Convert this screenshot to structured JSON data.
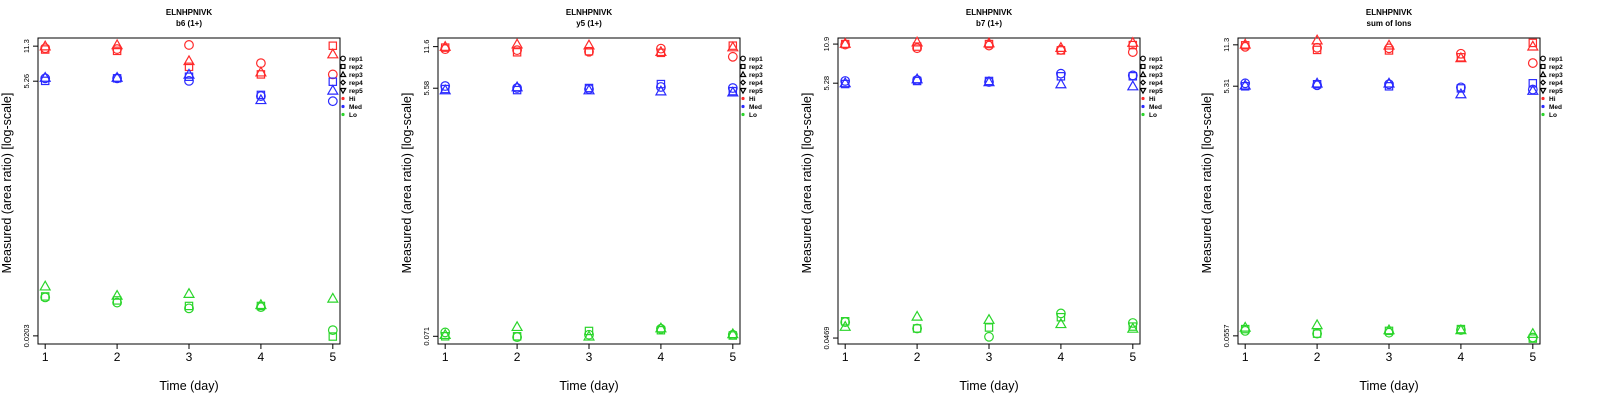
{
  "colors": {
    "Hi": "#ff2a2a",
    "Med": "#2a2aff",
    "Lo": "#2ad52a",
    "axis": "#000000"
  },
  "legend": [
    {
      "label": "rep1",
      "marker": "circle"
    },
    {
      "label": "rep2",
      "marker": "square"
    },
    {
      "label": "rep3",
      "marker": "triangle-up"
    },
    {
      "label": "rep4",
      "marker": "diamond"
    },
    {
      "label": "rep5",
      "marker": "triangle-down"
    },
    {
      "label": "Hi",
      "marker": "dot",
      "color": "Hi"
    },
    {
      "label": "Med",
      "marker": "dot",
      "color": "Med"
    },
    {
      "label": "Lo",
      "marker": "dot",
      "color": "Lo"
    }
  ],
  "chart_data": [
    {
      "type": "scatter",
      "title": "ELNHPNIVK",
      "subtitle": "b6 (1+)",
      "xlabel": "Time (day)",
      "ylabel": "Measured (area ratio) [log-scale]",
      "x_ticks": [
        "1",
        "2",
        "3",
        "4",
        "5"
      ],
      "y_ticks": [
        "0.0203",
        "5.26",
        "11.3"
      ],
      "xlim": [
        0.9,
        5.1
      ],
      "ylim": [
        0.017,
        13.5
      ],
      "log_y": true,
      "series": [
        {
          "group": "Hi",
          "marker": "circle",
          "points": [
            [
              1,
              10.8
            ],
            [
              2,
              10.6
            ],
            [
              3,
              11.6
            ],
            [
              4,
              7.8
            ],
            [
              5,
              6.1
            ]
          ]
        },
        {
          "group": "Hi",
          "marker": "square",
          "points": [
            [
              1,
              10.5
            ],
            [
              2,
              10.2
            ],
            [
              3,
              7.2
            ],
            [
              4,
              6.1
            ],
            [
              5,
              11.4
            ]
          ]
        },
        {
          "group": "Hi",
          "marker": "triangle-up",
          "points": [
            [
              1,
              11.3
            ],
            [
              2,
              11.6
            ],
            [
              3,
              8.2
            ],
            [
              4,
              6.4
            ],
            [
              5,
              9.5
            ]
          ]
        },
        {
          "group": "Med",
          "marker": "circle",
          "points": [
            [
              1,
              5.6
            ],
            [
              2,
              5.6
            ],
            [
              3,
              5.3
            ],
            [
              4,
              3.8
            ],
            [
              5,
              3.4
            ]
          ]
        },
        {
          "group": "Med",
          "marker": "square",
          "points": [
            [
              1,
              5.3
            ],
            [
              2,
              5.6
            ],
            [
              3,
              5.8
            ],
            [
              4,
              3.9
            ],
            [
              5,
              5.2
            ]
          ]
        },
        {
          "group": "Med",
          "marker": "triangle-up",
          "points": [
            [
              1,
              5.7
            ],
            [
              2,
              5.7
            ],
            [
              3,
              6.1
            ],
            [
              4,
              3.5
            ],
            [
              5,
              4.3
            ]
          ]
        },
        {
          "group": "Lo",
          "marker": "circle",
          "points": [
            [
              1,
              0.047
            ],
            [
              2,
              0.042
            ],
            [
              3,
              0.037
            ],
            [
              4,
              0.038
            ],
            [
              5,
              0.023
            ]
          ]
        },
        {
          "group": "Lo",
          "marker": "square",
          "points": [
            [
              1,
              0.048
            ],
            [
              2,
              0.044
            ],
            [
              3,
              0.039
            ],
            [
              4,
              0.039
            ],
            [
              5,
              0.02
            ]
          ]
        },
        {
          "group": "Lo",
          "marker": "triangle-up",
          "points": [
            [
              1,
              0.06
            ],
            [
              2,
              0.049
            ],
            [
              3,
              0.051
            ],
            [
              4,
              0.04
            ],
            [
              5,
              0.046
            ]
          ]
        }
      ]
    },
    {
      "type": "scatter",
      "title": "ELNHPNIVK",
      "subtitle": "y5 (1+)",
      "xlabel": "Time (day)",
      "ylabel": "Measured (area ratio) [log-scale]",
      "x_ticks": [
        "1",
        "2",
        "3",
        "4",
        "5"
      ],
      "y_ticks": [
        "0.071",
        "5.58",
        "11.6"
      ],
      "xlim": [
        0.9,
        5.1
      ],
      "ylim": [
        0.062,
        13.5
      ],
      "log_y": true,
      "series": [
        {
          "group": "Hi",
          "marker": "circle",
          "points": [
            [
              1,
              11.1
            ],
            [
              2,
              10.9
            ],
            [
              3,
              10.6
            ],
            [
              4,
              11.2
            ],
            [
              5,
              9.7
            ]
          ]
        },
        {
          "group": "Hi",
          "marker": "square",
          "points": [
            [
              1,
              11.4
            ],
            [
              2,
              10.5
            ],
            [
              3,
              10.7
            ],
            [
              4,
              10.4
            ],
            [
              5,
              11.8
            ]
          ]
        },
        {
          "group": "Hi",
          "marker": "triangle-up",
          "points": [
            [
              1,
              11.6
            ],
            [
              2,
              12.1
            ],
            [
              3,
              11.9
            ],
            [
              4,
              10.6
            ],
            [
              5,
              11.5
            ]
          ]
        },
        {
          "group": "Med",
          "marker": "circle",
          "points": [
            [
              1,
              5.8
            ],
            [
              2,
              5.6
            ],
            [
              3,
              5.5
            ],
            [
              4,
              5.7
            ],
            [
              5,
              5.6
            ]
          ]
        },
        {
          "group": "Med",
          "marker": "square",
          "points": [
            [
              1,
              5.5
            ],
            [
              2,
              5.4
            ],
            [
              3,
              5.6
            ],
            [
              4,
              6.0
            ],
            [
              5,
              5.3
            ]
          ]
        },
        {
          "group": "Med",
          "marker": "triangle-up",
          "points": [
            [
              1,
              5.4
            ],
            [
              2,
              5.7
            ],
            [
              3,
              5.4
            ],
            [
              4,
              5.3
            ],
            [
              5,
              5.2
            ]
          ]
        },
        {
          "group": "Lo",
          "marker": "circle",
          "points": [
            [
              1,
              0.076
            ],
            [
              2,
              0.07
            ],
            [
              3,
              0.073
            ],
            [
              4,
              0.081
            ],
            [
              5,
              0.073
            ]
          ]
        },
        {
          "group": "Lo",
          "marker": "square",
          "points": [
            [
              1,
              0.071
            ],
            [
              2,
              0.071
            ],
            [
              3,
              0.078
            ],
            [
              4,
              0.079
            ],
            [
              5,
              0.072
            ]
          ]
        },
        {
          "group": "Lo",
          "marker": "triangle-up",
          "points": [
            [
              1,
              0.073
            ],
            [
              2,
              0.084
            ],
            [
              3,
              0.071
            ],
            [
              4,
              0.082
            ],
            [
              5,
              0.074
            ]
          ]
        }
      ]
    },
    {
      "type": "scatter",
      "title": "ELNHPNIVK",
      "subtitle": "b7 (1+)",
      "xlabel": "Time (day)",
      "ylabel": "Measured (area ratio) [log-scale]",
      "x_ticks": [
        "1",
        "2",
        "3",
        "4",
        "5"
      ],
      "y_ticks": [
        "0.0469",
        "5.28",
        "10.9"
      ],
      "xlim": [
        0.9,
        5.1
      ],
      "ylim": [
        0.042,
        12.2
      ],
      "log_y": true,
      "series": [
        {
          "group": "Hi",
          "marker": "circle",
          "points": [
            [
              1,
              10.8
            ],
            [
              2,
              10.1
            ],
            [
              3,
              10.6
            ],
            [
              4,
              9.8
            ],
            [
              5,
              9.4
            ]
          ]
        },
        {
          "group": "Hi",
          "marker": "square",
          "points": [
            [
              1,
              10.9
            ],
            [
              2,
              10.4
            ],
            [
              3,
              10.9
            ],
            [
              4,
              9.7
            ],
            [
              5,
              10.7
            ]
          ]
        },
        {
          "group": "Hi",
          "marker": "triangle-up",
          "points": [
            [
              1,
              11.0
            ],
            [
              2,
              11.3
            ],
            [
              3,
              11.1
            ],
            [
              4,
              10.2
            ],
            [
              5,
              11.2
            ]
          ]
        },
        {
          "group": "Med",
          "marker": "circle",
          "points": [
            [
              1,
              5.5
            ],
            [
              2,
              5.6
            ],
            [
              3,
              5.4
            ],
            [
              4,
              6.3
            ],
            [
              5,
              6.1
            ]
          ]
        },
        {
          "group": "Med",
          "marker": "square",
          "points": [
            [
              1,
              5.2
            ],
            [
              2,
              5.5
            ],
            [
              3,
              5.5
            ],
            [
              4,
              6.0
            ],
            [
              5,
              6.0
            ]
          ]
        },
        {
          "group": "Med",
          "marker": "triangle-up",
          "points": [
            [
              1,
              5.3
            ],
            [
              2,
              5.7
            ],
            [
              3,
              5.4
            ],
            [
              4,
              5.2
            ],
            [
              5,
              5.0
            ]
          ]
        },
        {
          "group": "Lo",
          "marker": "circle",
          "points": [
            [
              1,
              0.063
            ],
            [
              2,
              0.056
            ],
            [
              3,
              0.048
            ],
            [
              4,
              0.074
            ],
            [
              5,
              0.062
            ]
          ]
        },
        {
          "group": "Lo",
          "marker": "square",
          "points": [
            [
              1,
              0.064
            ],
            [
              2,
              0.056
            ],
            [
              3,
              0.057
            ],
            [
              4,
              0.069
            ],
            [
              5,
              0.058
            ]
          ]
        },
        {
          "group": "Lo",
          "marker": "triangle-up",
          "points": [
            [
              1,
              0.058
            ],
            [
              2,
              0.07
            ],
            [
              3,
              0.066
            ],
            [
              4,
              0.061
            ],
            [
              5,
              0.056
            ]
          ]
        }
      ]
    },
    {
      "type": "scatter",
      "title": "ELNHPNIVK",
      "subtitle": "sum of Ions",
      "xlabel": "Time (day)",
      "ylabel": "Measured (area ratio) [log-scale]",
      "x_ticks": [
        "1",
        "2",
        "3",
        "4",
        "5"
      ],
      "y_ticks": [
        "0.0557",
        "5.31",
        "11.3"
      ],
      "xlim": [
        0.9,
        5.1
      ],
      "ylim": [
        0.048,
        12.8
      ],
      "log_y": true,
      "series": [
        {
          "group": "Hi",
          "marker": "circle",
          "points": [
            [
              1,
              10.9
            ],
            [
              2,
              10.7
            ],
            [
              3,
              10.6
            ],
            [
              4,
              9.6
            ],
            [
              5,
              8.1
            ]
          ]
        },
        {
          "group": "Hi",
          "marker": "square",
          "points": [
            [
              1,
              11.2
            ],
            [
              2,
              10.3
            ],
            [
              3,
              10.2
            ],
            [
              4,
              9.0
            ],
            [
              5,
              11.7
            ]
          ]
        },
        {
          "group": "Hi",
          "marker": "triangle-up",
          "points": [
            [
              1,
              11.4
            ],
            [
              2,
              12.3
            ],
            [
              3,
              11.2
            ],
            [
              4,
              8.9
            ],
            [
              5,
              11.0
            ]
          ]
        },
        {
          "group": "Med",
          "marker": "circle",
          "points": [
            [
              1,
              5.6
            ],
            [
              2,
              5.4
            ],
            [
              3,
              5.5
            ],
            [
              4,
              5.2
            ],
            [
              5,
              5.0
            ]
          ]
        },
        {
          "group": "Med",
          "marker": "square",
          "points": [
            [
              1,
              5.3
            ],
            [
              2,
              5.5
            ],
            [
              3,
              5.3
            ],
            [
              4,
              5.1
            ],
            [
              5,
              5.6
            ]
          ]
        },
        {
          "group": "Med",
          "marker": "triangle-up",
          "points": [
            [
              1,
              5.4
            ],
            [
              2,
              5.6
            ],
            [
              3,
              5.6
            ],
            [
              4,
              4.6
            ],
            [
              5,
              4.9
            ]
          ]
        },
        {
          "group": "Lo",
          "marker": "circle",
          "points": [
            [
              1,
              0.061
            ],
            [
              2,
              0.058
            ],
            [
              3,
              0.059
            ],
            [
              4,
              0.062
            ],
            [
              5,
              0.054
            ]
          ]
        },
        {
          "group": "Lo",
          "marker": "square",
          "points": [
            [
              1,
              0.063
            ],
            [
              2,
              0.058
            ],
            [
              3,
              0.061
            ],
            [
              4,
              0.063
            ],
            [
              5,
              0.053
            ]
          ]
        },
        {
          "group": "Lo",
          "marker": "triangle-up",
          "points": [
            [
              1,
              0.065
            ],
            [
              2,
              0.068
            ],
            [
              3,
              0.062
            ],
            [
              4,
              0.062
            ],
            [
              5,
              0.058
            ]
          ]
        }
      ]
    }
  ]
}
